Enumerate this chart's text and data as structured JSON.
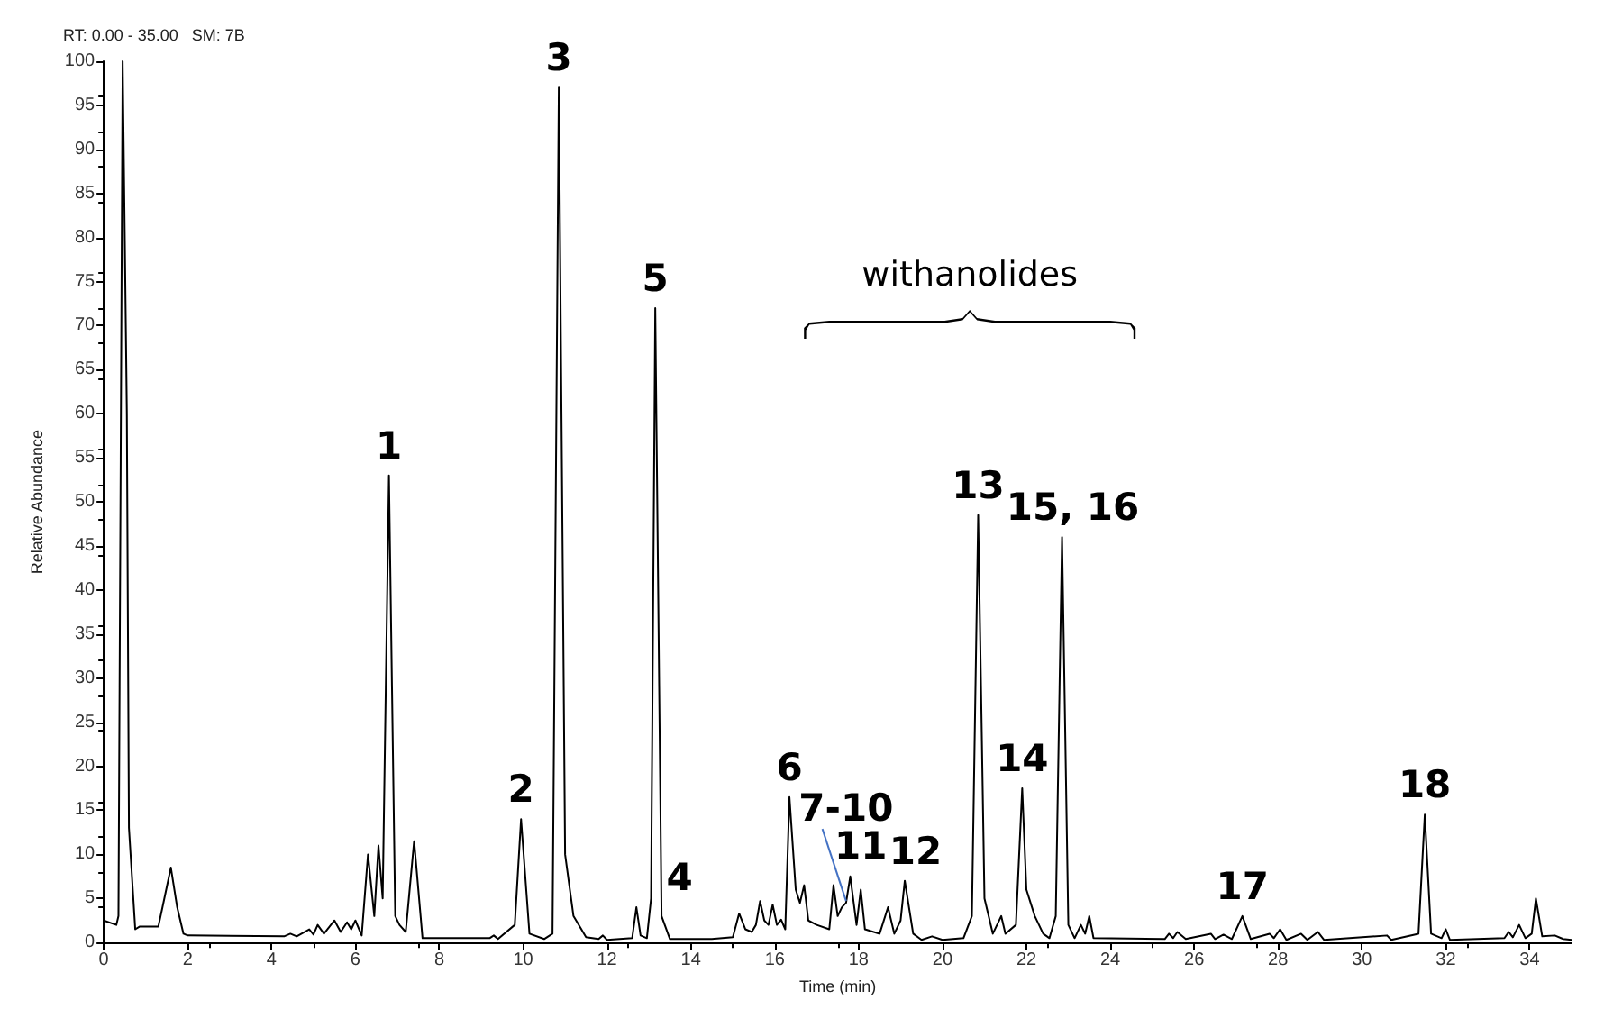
{
  "chart_data": {
    "type": "line",
    "title": "RT: 0.00 - 35.00   SM: 7B",
    "xlabel": "Time (min)",
    "ylabel": "Relative Abundance",
    "x": [
      0,
      0.3,
      0.35,
      0.45,
      0.55,
      0.6,
      0.75,
      0.85,
      1.3,
      1.4,
      1.6,
      1.75,
      1.9,
      2,
      4.3,
      4.45,
      4.6,
      4.9,
      5.0,
      5.1,
      5.25,
      5.5,
      5.65,
      5.8,
      5.9,
      6.0,
      6.15,
      6.3,
      6.45,
      6.55,
      6.65,
      6.8,
      6.95,
      7.05,
      7.2,
      7.4,
      7.6,
      9.2,
      9.3,
      9.4,
      9.8,
      9.95,
      10.15,
      10.5,
      10.7,
      10.85,
      11.0,
      11.2,
      11.5,
      11.8,
      11.9,
      12.0,
      12.6,
      12.7,
      12.8,
      12.95,
      13.05,
      13.15,
      13.3,
      13.5,
      14.5,
      15.0,
      15.15,
      15.3,
      15.45,
      15.55,
      15.65,
      15.75,
      15.85,
      15.95,
      16.05,
      16.15,
      16.25,
      16.35,
      16.5,
      16.6,
      16.7,
      16.8,
      17.0,
      17.3,
      17.4,
      17.5,
      17.6,
      17.7,
      17.8,
      17.95,
      18.05,
      18.15,
      18.5,
      18.7,
      18.85,
      19.0,
      19.1,
      19.3,
      19.5,
      19.75,
      20.0,
      20.5,
      20.7,
      20.85,
      21.0,
      21.2,
      21.4,
      21.5,
      21.75,
      21.9,
      22.0,
      22.2,
      22.4,
      22.55,
      22.7,
      22.85,
      23.0,
      23.15,
      23.3,
      23.4,
      23.5,
      23.6,
      25.3,
      25.4,
      25.5,
      25.6,
      25.8,
      26.4,
      26.5,
      26.7,
      26.9,
      27.15,
      27.35,
      27.8,
      27.9,
      28.05,
      28.2,
      28.55,
      28.7,
      28.95,
      29.1,
      30.6,
      30.7,
      31.35,
      31.5,
      31.65,
      31.9,
      32.0,
      32.1,
      33.4,
      33.5,
      33.6,
      33.75,
      33.9,
      34.05,
      34.15,
      34.3,
      34.6,
      34.8,
      35
    ],
    "series": [
      {
        "color": "#000000",
        "values": [
          2.5,
          2,
          3,
          100,
          60,
          13,
          1.5,
          1.8,
          1.8,
          4,
          8.5,
          4,
          1,
          0.8,
          0.7,
          1,
          0.7,
          1.5,
          0.9,
          2,
          1,
          2.5,
          1.2,
          2.3,
          1.5,
          2.5,
          0.8,
          10,
          3,
          11,
          5,
          53,
          3,
          2,
          1.2,
          11.5,
          0.5,
          0.5,
          0.8,
          0.4,
          2,
          14,
          1,
          0.4,
          1,
          97,
          10,
          3,
          0.6,
          0.4,
          0.8,
          0.3,
          0.5,
          4,
          0.8,
          0.5,
          5,
          72,
          3,
          0.4,
          0.4,
          0.6,
          3.3,
          1.5,
          1.2,
          2,
          4.7,
          2.5,
          2,
          4.3,
          2,
          2.6,
          1.5,
          16.5,
          6,
          4.5,
          6.5,
          2.5,
          2,
          1.5,
          6.5,
          3,
          4,
          4.5,
          7.5,
          2,
          6,
          1.5,
          1,
          4,
          1,
          2.5,
          7,
          1,
          0.3,
          0.7,
          0.3,
          0.5,
          3,
          48.5,
          5,
          1,
          3,
          1,
          2,
          17.5,
          6,
          3,
          1,
          0.5,
          3,
          46,
          2,
          0.5,
          2,
          1,
          3,
          0.5,
          0.4,
          1,
          0.5,
          1.2,
          0.4,
          1,
          0.4,
          0.9,
          0.4,
          3,
          0.4,
          1,
          0.5,
          1.5,
          0.3,
          1,
          0.3,
          1.2,
          0.3,
          0.8,
          0.3,
          1,
          14.5,
          1,
          0.5,
          1.5,
          0.3,
          0.5,
          1.2,
          0.6,
          2,
          0.5,
          1,
          5,
          0.7,
          0.8,
          0.4,
          0.3
        ]
      }
    ],
    "xlim": [
      0,
      35
    ],
    "xticks": [
      0,
      2,
      4,
      6,
      8,
      10,
      12,
      14,
      16,
      18,
      20,
      22,
      24,
      26,
      28,
      30,
      32,
      34
    ],
    "ylim": [
      0,
      100
    ],
    "yticks": [
      0,
      5,
      10,
      15,
      20,
      25,
      30,
      35,
      40,
      45,
      50,
      55,
      60,
      65,
      70,
      75,
      80,
      85,
      90,
      95,
      100
    ],
    "grid": false,
    "marker": "none",
    "line_style": "solid",
    "annotations": [
      {
        "text": "1",
        "x": 6.8,
        "y": 53
      },
      {
        "text": "2",
        "x": 9.95,
        "y": 14
      },
      {
        "text": "3",
        "x": 10.85,
        "y": 97
      },
      {
        "text": "4",
        "x": 12.7,
        "y": 4
      },
      {
        "text": "5",
        "x": 13.15,
        "y": 72
      },
      {
        "text": "6",
        "x": 16.35,
        "y": 16.5
      },
      {
        "text": "11",
        "x": 18.05,
        "y": 6
      },
      {
        "text": "12",
        "x": 19.1,
        "y": 7
      },
      {
        "text": "7-10",
        "x": 17.7,
        "y": 4.5
      },
      {
        "text": "13",
        "x": 20.85,
        "y": 48.5
      },
      {
        "text": "14",
        "x": 21.9,
        "y": 17.5
      },
      {
        "text": "15, 16",
        "x": 22.85,
        "y": 46
      },
      {
        "text": "17",
        "x": 27.15,
        "y": 3
      },
      {
        "text": "18",
        "x": 31.5,
        "y": 14.5
      },
      "withanolides"
    ]
  }
}
